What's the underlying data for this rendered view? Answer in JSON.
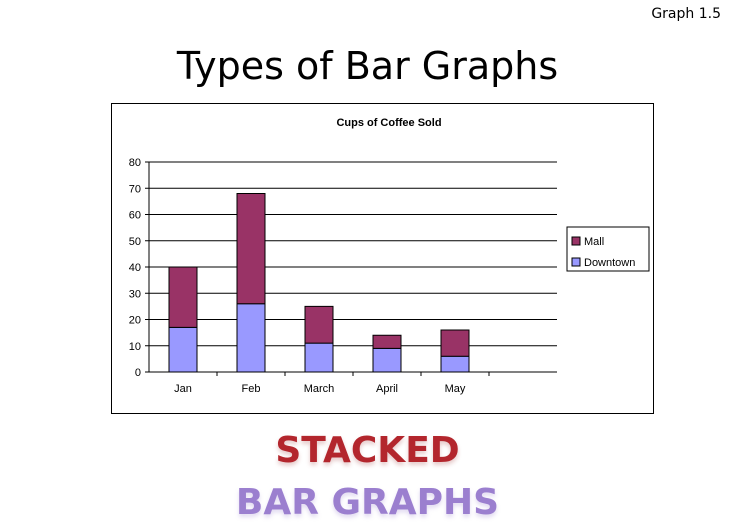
{
  "header": {
    "corner_label": "Graph 1.5",
    "title": "Types of Bar Graphs"
  },
  "captions": {
    "line1": "STACKED",
    "line2": "BAR GRAPHS"
  },
  "colors": {
    "mall": "#993366",
    "downtown": "#9999ff",
    "caption_line1": "#b3262d",
    "caption_line2": "#9b7fcf"
  },
  "chart_data": {
    "type": "bar",
    "stacked": true,
    "title": "Cups of Coffee Sold",
    "categories": [
      "Jan",
      "Feb",
      "March",
      "April",
      "May"
    ],
    "series": [
      {
        "name": "Downtown",
        "values": [
          17,
          26,
          11,
          9,
          6
        ],
        "color": "#9999ff"
      },
      {
        "name": "Mall",
        "values": [
          23,
          42,
          14,
          5,
          10
        ],
        "color": "#993366"
      }
    ],
    "legend_order": [
      "Mall",
      "Downtown"
    ],
    "ylim": [
      0,
      80
    ],
    "yticks": [
      0,
      10,
      20,
      30,
      40,
      50,
      60,
      70,
      80
    ],
    "grid": true,
    "legend_position": "right"
  }
}
